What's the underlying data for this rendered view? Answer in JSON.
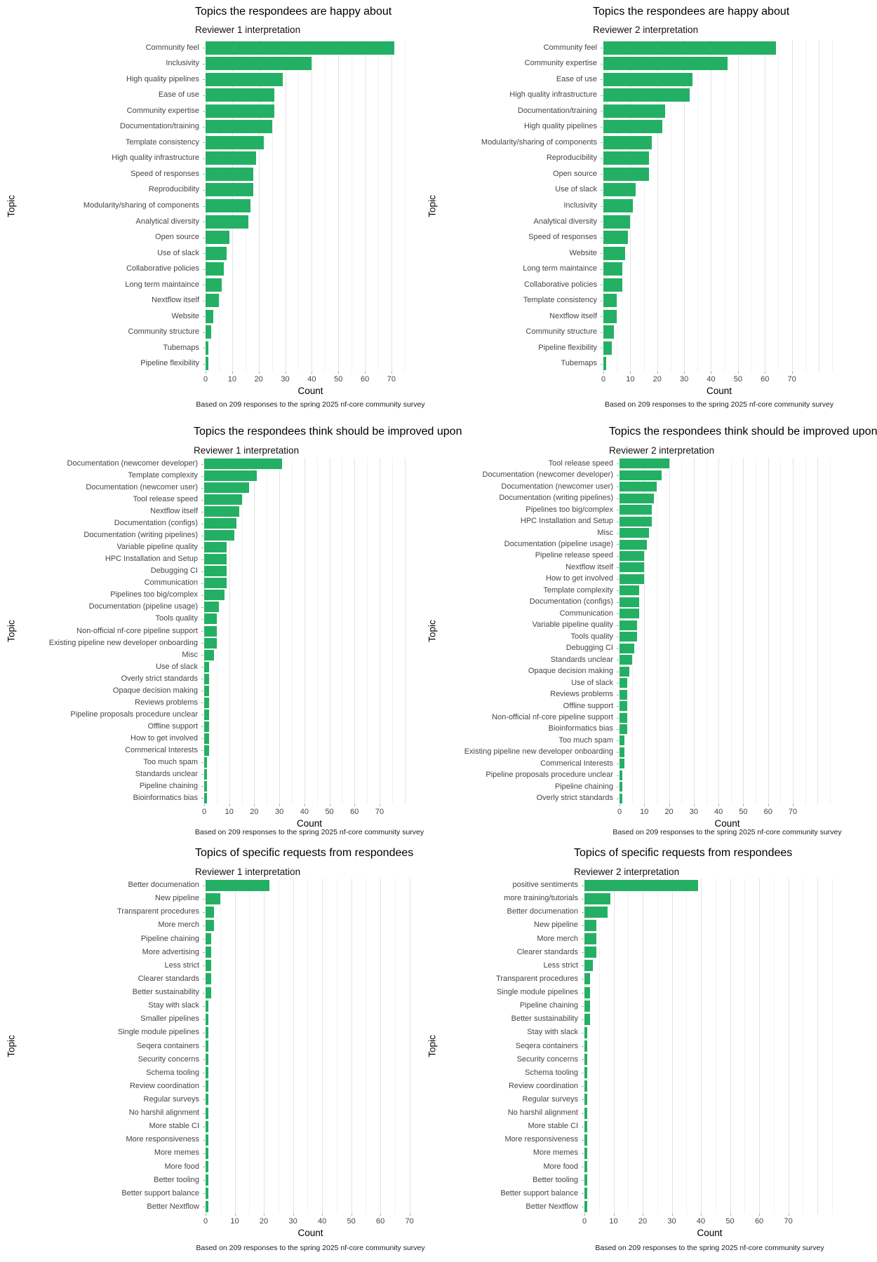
{
  "colors": {
    "bar": "#24B064",
    "grid_major": "#e3e3e3",
    "grid_minor": "#f2f2f2",
    "text": "#454545"
  },
  "chart_data": [
    {
      "type": "bar",
      "orientation": "horizontal",
      "title": "Topics the respondees are happy about",
      "subtitle": "Reviewer 1 interpretation",
      "xlabel": "Count",
      "ylabel": "Topic",
      "caption": "Based on 209 responses to the spring 2025 nf-core community survey",
      "x_ticks": [
        0,
        10,
        20,
        30,
        40,
        50,
        60,
        70
      ],
      "xlim": [
        0,
        79
      ],
      "grid": true,
      "categories": [
        "Community feel",
        "Inclusivity",
        "High quality pipelines",
        "Ease of use",
        "Community expertise",
        "Documentation/training",
        "Template consistency",
        "High quality infrastructure",
        "Speed of responses",
        "Reproducibility",
        "Modularity/sharing of components",
        "Analytical diversity",
        "Open source",
        "Use of slack",
        "Collaborative policies",
        "Long term maintaince",
        "Nextflow itself",
        "Website",
        "Community structure",
        "Tubemaps",
        "Pipeline flexibility"
      ],
      "values": [
        71,
        40,
        29,
        26,
        26,
        25,
        22,
        19,
        18,
        18,
        17,
        16,
        9,
        8,
        7,
        6,
        5,
        3,
        2,
        1,
        1
      ]
    },
    {
      "type": "bar",
      "orientation": "horizontal",
      "title": "Topics the respondees are happy about",
      "subtitle": "Reviewer 2 interpretation",
      "xlabel": "Count",
      "ylabel": "Topic",
      "caption": "Based on 209 responses to the spring 2025 nf-core community survey",
      "x_ticks": [
        0,
        10,
        20,
        30,
        40,
        50,
        60,
        70
      ],
      "xlim": [
        0,
        86
      ],
      "grid": true,
      "categories": [
        "Community feel",
        "Community expertise",
        "Ease of use",
        "High quality infrastructure",
        "Documentation/training",
        "High quality pipelines",
        "Modularity/sharing of components",
        "Reproducibility",
        "Open source",
        "Use of slack",
        "Inclusivity",
        "Analytical diversity",
        "Speed of responses",
        "Website",
        "Long term maintaince",
        "Collaborative policies",
        "Template consistency",
        "Nextflow itself",
        "Community structure",
        "Pipeline flexibility",
        "Tubemaps"
      ],
      "values": [
        64,
        46,
        33,
        32,
        23,
        22,
        18,
        17,
        17,
        12,
        11,
        10,
        9,
        8,
        7,
        7,
        5,
        5,
        4,
        3,
        1
      ]
    },
    {
      "type": "bar",
      "orientation": "horizontal",
      "title": "Topics the respondees think should be improved upon",
      "subtitle": "Reviewer 1 interpretation",
      "xlabel": "Count",
      "ylabel": "Topic",
      "caption": "Based on 209 responses to the spring 2025 nf-core community survey",
      "x_ticks": [
        0,
        10,
        20,
        30,
        40,
        50,
        60,
        70
      ],
      "xlim": [
        0,
        84
      ],
      "grid": true,
      "categories": [
        "Documentation (newcomer developer)",
        "Template complexity",
        "Documentation (newcomer user)",
        "Tool release speed",
        "Nextflow itself",
        "Documentation (configs)",
        "Documentation (writing pipelines)",
        "Variable pipeline quality",
        "HPC Installation and Setup",
        "Debugging CI",
        "Communication",
        "Pipelines too big/complex",
        "Documentation (pipeline usage)",
        "Tools quality",
        "Non-official nf-core pipeline support",
        "Existing pipeline new developer onboarding",
        "Misc",
        "Use of slack",
        "Overly strict standards",
        "Opaque decision making",
        "Reviews problems",
        "Pipeline proposals procedure unclear",
        "Offline support",
        "How to get involved",
        "Commerical Interests",
        "Too much spam",
        "Standards unclear",
        "Pipeline chaining",
        "Bioinformatics bias"
      ],
      "values": [
        31,
        21,
        18,
        15,
        14,
        13,
        12,
        9,
        9,
        9,
        9,
        8,
        6,
        5,
        5,
        5,
        4,
        2,
        2,
        2,
        2,
        2,
        2,
        2,
        2,
        1,
        1,
        1,
        1
      ]
    },
    {
      "type": "bar",
      "orientation": "horizontal",
      "title": "Topics the respondees think should be improved upon",
      "subtitle": "Reviewer 2 interpretation",
      "xlabel": "Count",
      "ylabel": "Topic",
      "caption": "Based on 209 responses to the spring 2025 nf-core community survey",
      "x_ticks": [
        0,
        10,
        20,
        30,
        40,
        50,
        60,
        70
      ],
      "xlim": [
        0,
        87
      ],
      "grid": true,
      "categories": [
        "Tool release speed",
        "Documentation (newcomer developer)",
        "Documentation (newcomer user)",
        "Documentation (writing pipelines)",
        "Pipelines too big/complex",
        "HPC Installation and Setup",
        "Misc",
        "Documentation (pipeline usage)",
        "Pipeline release speed",
        "Nextflow itself",
        "How to get involved",
        "Template complexity",
        "Documentation (configs)",
        "Communication",
        "Variable pipeline quality",
        "Tools quality",
        "Debugging CI",
        "Standards unclear",
        "Opaque decision making",
        "Use of slack",
        "Reviews problems",
        "Offline support",
        "Non-official nf-core pipeline support",
        "Bioinformatics bias",
        "Too much spam",
        "Existing pipeline new developer onboarding",
        "Commerical Interests",
        "Pipeline proposals procedure unclear",
        "Pipeline chaining",
        "Overly strict standards"
      ],
      "values": [
        20,
        17,
        15,
        14,
        13,
        13,
        12,
        11,
        10,
        10,
        10,
        8,
        8,
        8,
        7,
        7,
        6,
        5,
        4,
        3,
        3,
        3,
        3,
        3,
        2,
        2,
        2,
        1,
        1,
        1
      ]
    },
    {
      "type": "bar",
      "orientation": "horizontal",
      "title": "Topics of specific requests from respondees",
      "subtitle": "Reviewer 1 interpretation",
      "xlabel": "Count",
      "ylabel": "Topic",
      "caption": "Based on 209 responses to the spring 2025 nf-core community survey",
      "x_ticks": [
        0,
        10,
        20,
        30,
        40,
        50,
        60,
        70
      ],
      "xlim": [
        0,
        72
      ],
      "grid": true,
      "categories": [
        "Better documenation",
        "New pipeline",
        "Transparent procedures",
        "More merch",
        "Pipeline chaining",
        "More advertising",
        "Less strict",
        "Clearer standards",
        "Better sustainability",
        "Stay with slack",
        "Smaller pipelines",
        "Single module pipelines",
        "Seqera containers",
        "Security concerns",
        "Schema tooling",
        "Review coordination",
        "Regular surveys",
        "No harshil alignment",
        "More stable CI",
        "More responsiveness",
        "More memes",
        "More food",
        "Better tooling",
        "Better support balance",
        "Better Nextflow"
      ],
      "values": [
        22,
        5,
        3,
        3,
        2,
        2,
        2,
        2,
        2,
        1,
        1,
        1,
        1,
        1,
        1,
        1,
        1,
        1,
        1,
        1,
        1,
        1,
        1,
        1,
        1
      ]
    },
    {
      "type": "bar",
      "orientation": "horizontal",
      "title": "Topics of specific requests from respondees",
      "subtitle": "Reviewer 2 interpretation",
      "xlabel": "Count",
      "ylabel": "Topic",
      "caption": "Based on 209 responses to the spring 2025 nf-core community survey",
      "x_ticks": [
        0,
        10,
        20,
        30,
        40,
        50,
        60,
        70
      ],
      "xlim": [
        0,
        86
      ],
      "grid": true,
      "categories": [
        "positive sentiments",
        "more training/tutorials",
        "Better documenation",
        "New pipeline",
        "More merch",
        "Clearer standards",
        "Less strict",
        "Transparent procedures",
        "Single module pipelines",
        "Pipeline chaining",
        "Better sustainability",
        "Stay with slack",
        "Seqera containers",
        "Security concerns",
        "Schema tooling",
        "Review coordination",
        "Regular surveys",
        "No harshil alignment",
        "More stable CI",
        "More responsiveness",
        "More memes",
        "More food",
        "Better tooling",
        "Better support balance",
        "Better Nextflow"
      ],
      "values": [
        39,
        9,
        8,
        4,
        4,
        4,
        3,
        2,
        2,
        2,
        2,
        1,
        1,
        1,
        1,
        1,
        1,
        1,
        1,
        1,
        1,
        1,
        1,
        1,
        1
      ]
    }
  ]
}
